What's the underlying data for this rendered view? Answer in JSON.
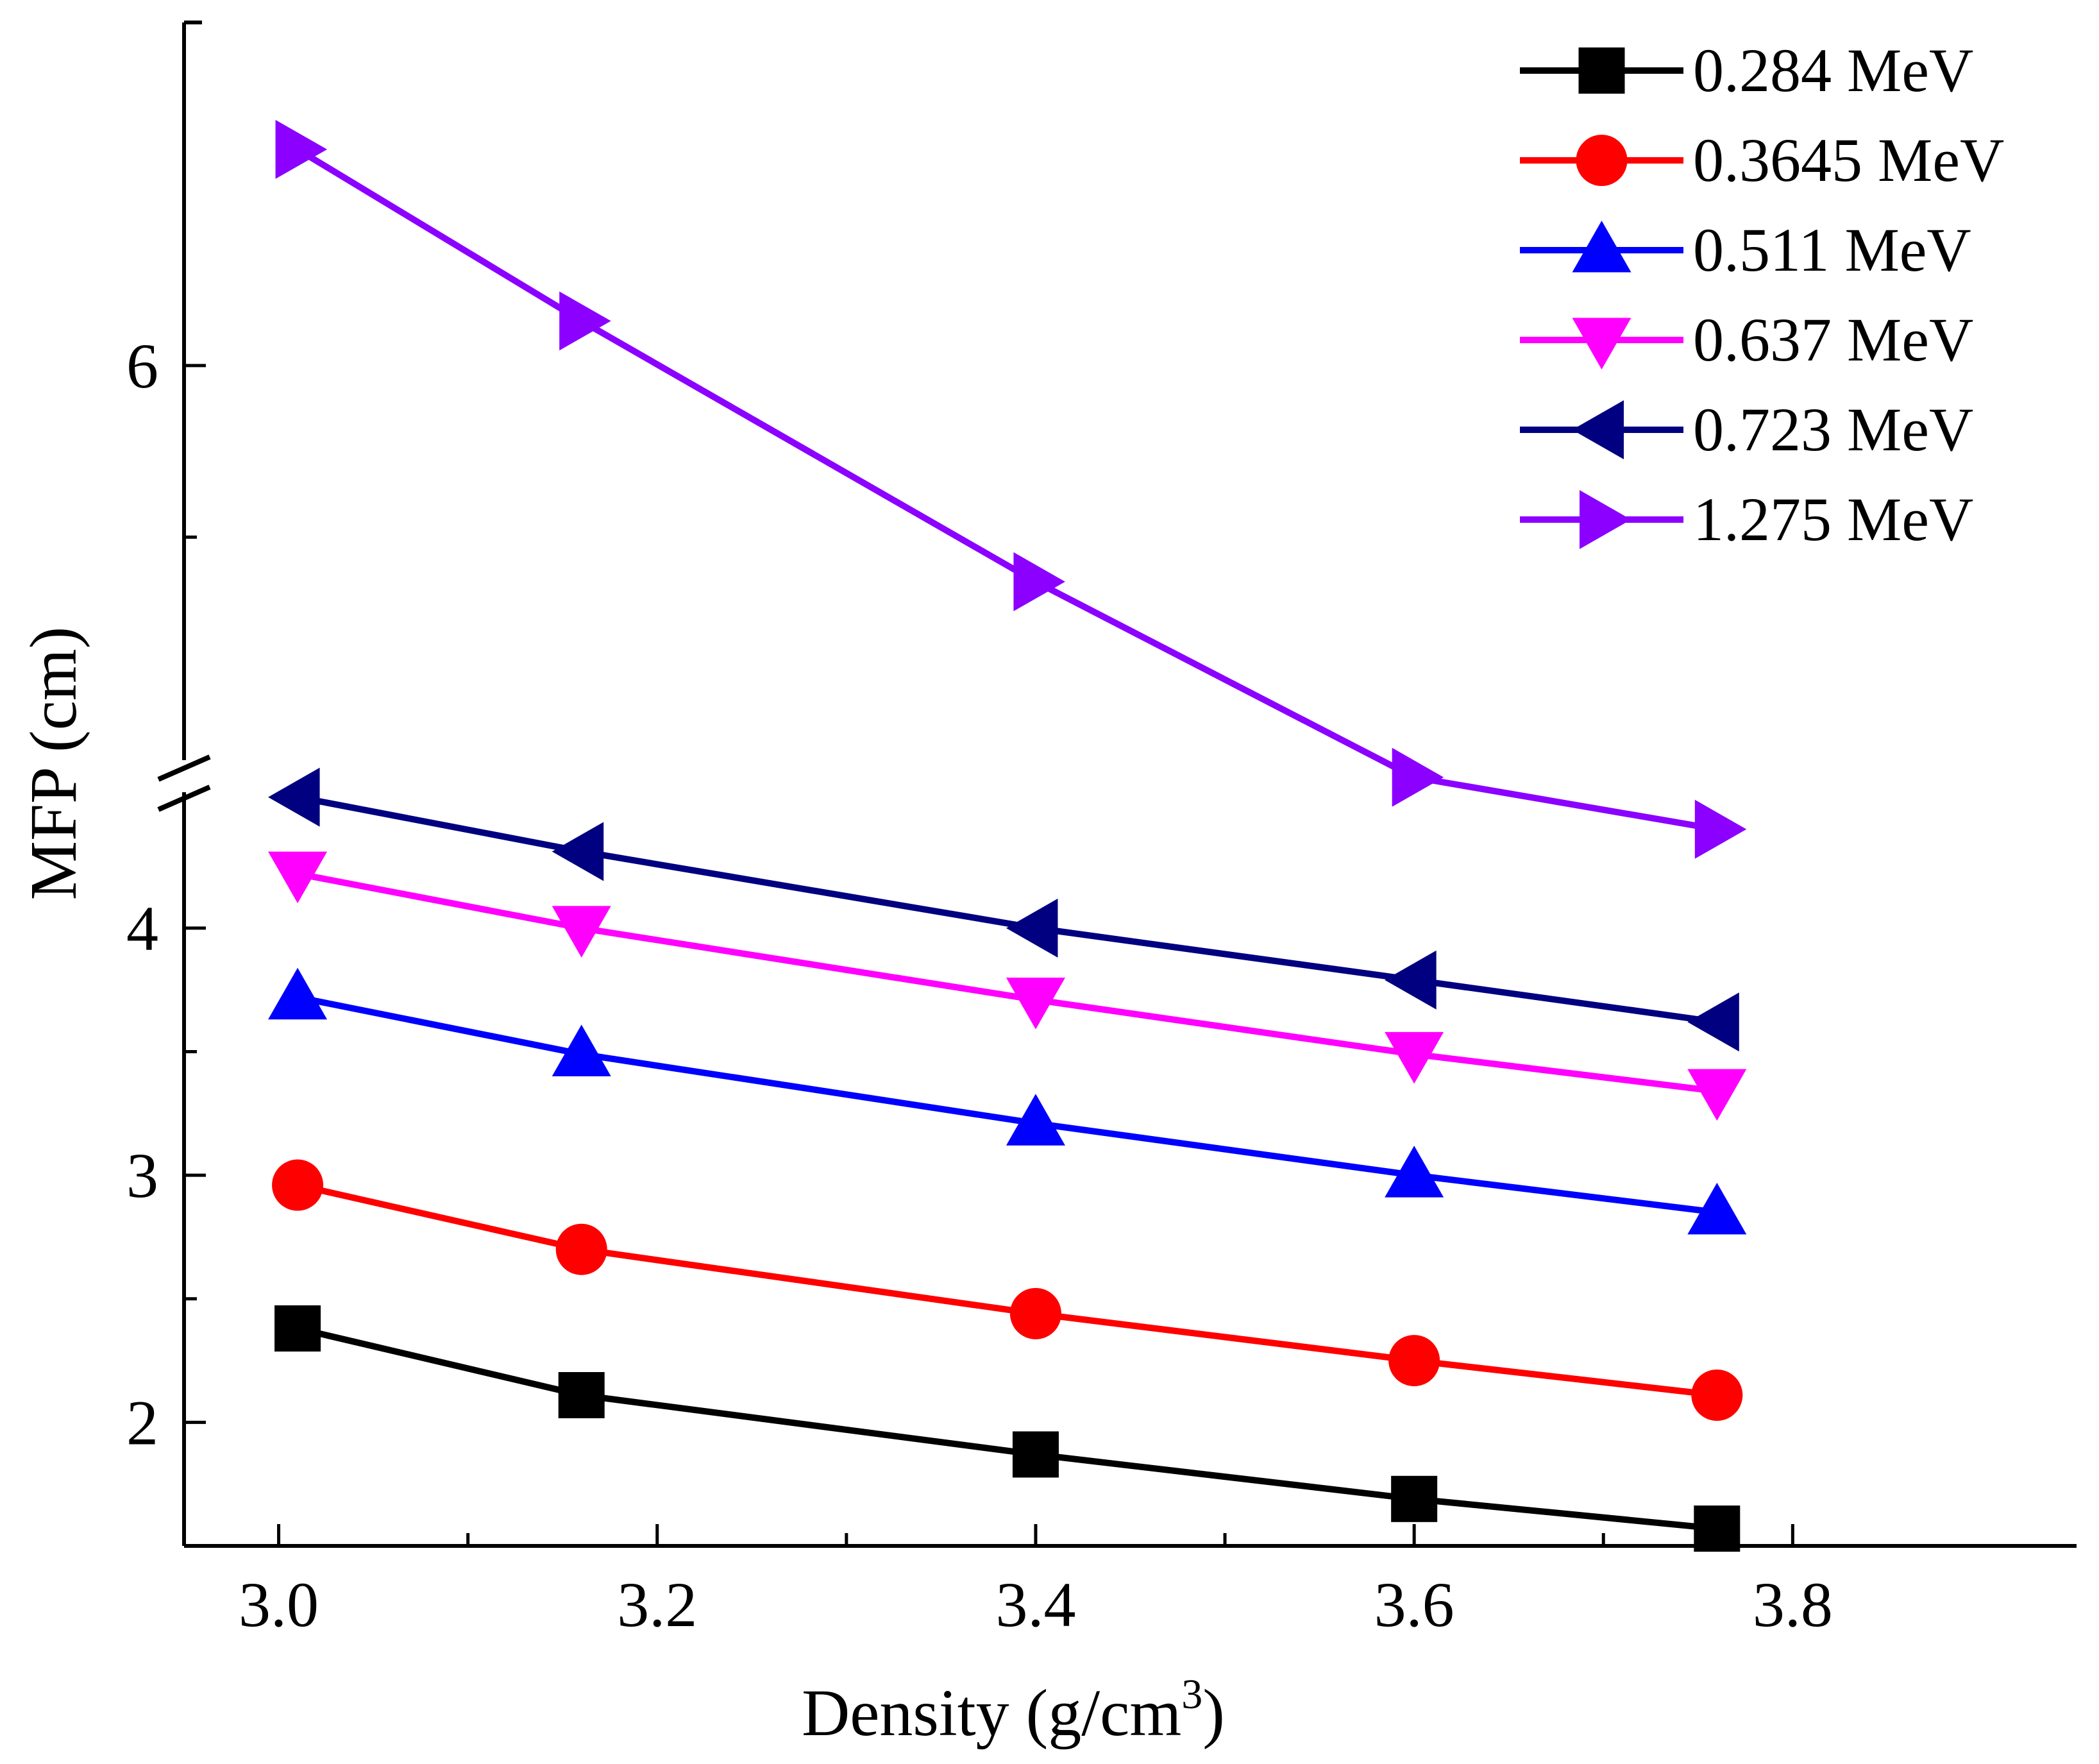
{
  "chart_data": {
    "type": "line",
    "xlabel": "Density (g/cm",
    "xlabel_sup": "3",
    "xlabel_end": ")",
    "ylabel": "MFP (cm)",
    "xlim": [
      2.95,
      3.95
    ],
    "x_ticks": [
      "3.0",
      "3.2",
      "3.4",
      "3.6",
      "3.8"
    ],
    "y_ticks_lower": [
      "2",
      "3",
      "4"
    ],
    "y_ticks_upper": [
      "6"
    ],
    "y_axis_break": true,
    "ylim_lower": [
      1.5,
      4.55
    ],
    "ylim_upper": [
      4.85,
      7.0
    ],
    "legend_position": "top-right",
    "x": [
      3.01,
      3.16,
      3.4,
      3.6,
      3.76
    ],
    "series": [
      {
        "name": "0.284 MeV",
        "color": "#000000",
        "marker": "square",
        "values": [
          2.38,
          2.11,
          1.87,
          1.69,
          1.57
        ]
      },
      {
        "name": "0.3645 MeV",
        "color": "#ff0000",
        "marker": "circle",
        "values": [
          2.96,
          2.7,
          2.44,
          2.25,
          2.11
        ]
      },
      {
        "name": "0.511 MeV",
        "color": "#0000ff",
        "marker": "triangle-up",
        "values": [
          3.72,
          3.49,
          3.21,
          3.0,
          2.85
        ]
      },
      {
        "name": "0.637 MeV",
        "color": "#ff00ff",
        "marker": "triangle-down",
        "values": [
          4.22,
          4.0,
          3.71,
          3.49,
          3.34
        ]
      },
      {
        "name": "0.723 MeV",
        "color": "#000080",
        "marker": "triangle-left",
        "values": [
          4.53,
          4.31,
          4.0,
          3.79,
          3.62
        ]
      },
      {
        "name": "1.275 MeV",
        "color": "#8b00ff",
        "marker": "triangle-right",
        "values": [
          6.63,
          6.13,
          5.37,
          4.8,
          4.4
        ]
      }
    ]
  }
}
